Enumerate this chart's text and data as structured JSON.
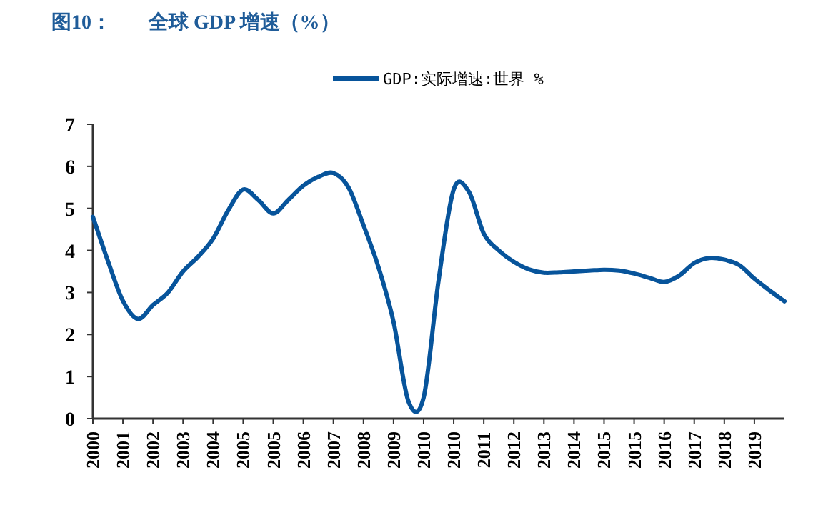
{
  "chart_data": {
    "type": "line",
    "title": "图10：",
    "subtitle": "全球 GDP 增速（%）",
    "categories": [
      "2000",
      null,
      "2001",
      null,
      "2002",
      null,
      "2003",
      null,
      "2004",
      null,
      "2005",
      null,
      "2005",
      null,
      "2006",
      null,
      "2007",
      null,
      "2008",
      null,
      "2009",
      null,
      "2010",
      null,
      "2010",
      null,
      "2011",
      null,
      "2012",
      null,
      "2013",
      null,
      "2014",
      null,
      "2015",
      null,
      "2015",
      null,
      "2016",
      null,
      "2017",
      null,
      "2018",
      null,
      "2019",
      null,
      null
    ],
    "ylim": [
      0,
      7
    ],
    "yticks": [
      0,
      1,
      2,
      3,
      4,
      5,
      6,
      7
    ],
    "grid": false,
    "legend": "top",
    "marker": "none",
    "line_style": "solid",
    "series": [
      {
        "name": "GDP:实际增速:世界  %",
        "color": "#07549b",
        "values": [
          4.8,
          3.75,
          2.8,
          2.37,
          2.7,
          3.0,
          3.5,
          3.85,
          4.28,
          4.95,
          5.45,
          5.2,
          4.88,
          5.2,
          5.54,
          5.75,
          5.84,
          5.5,
          4.6,
          3.6,
          2.3,
          0.4,
          0.5,
          3.3,
          5.45,
          5.4,
          4.4,
          4.0,
          3.73,
          3.55,
          3.47,
          3.48,
          3.5,
          3.52,
          3.54,
          3.52,
          3.45,
          3.35,
          3.25,
          3.4,
          3.7,
          3.82,
          3.78,
          3.65,
          3.33,
          3.05,
          2.79
        ]
      }
    ]
  }
}
